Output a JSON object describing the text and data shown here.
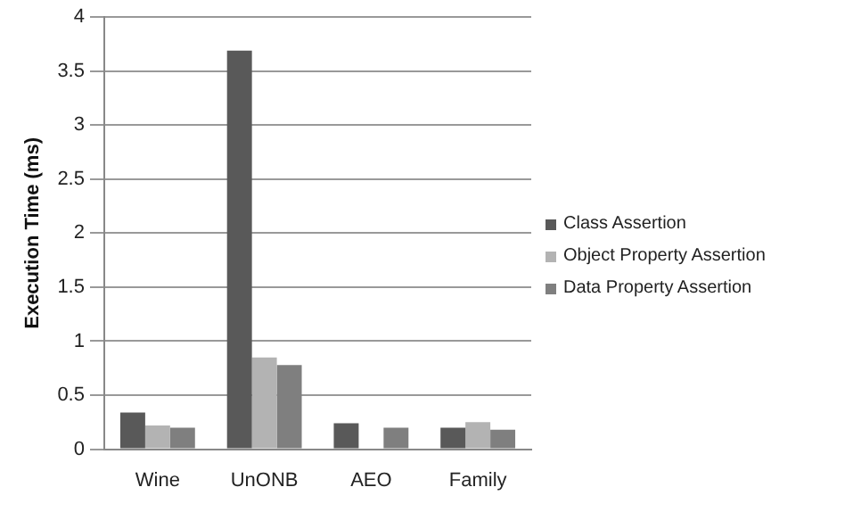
{
  "chart_data": {
    "type": "bar",
    "ylabel": "Execution Time (ms)",
    "categories": [
      "Wine",
      "UnONB",
      "AEO",
      "Family"
    ],
    "series": [
      {
        "name": "Class Assertion",
        "color": "#595959",
        "values": [
          0.34,
          3.69,
          0.24,
          0.2
        ]
      },
      {
        "name": "Object Property Assertion",
        "color": "#b3b3b3",
        "values": [
          0.22,
          0.85,
          null,
          0.25
        ]
      },
      {
        "name": "Data Property Assertion",
        "color": "#7f7f7f",
        "values": [
          0.2,
          0.78,
          0.2,
          0.18
        ]
      }
    ],
    "ylim": [
      0,
      4
    ],
    "yticks": [
      0,
      0.5,
      1,
      1.5,
      2,
      2.5,
      3,
      3.5,
      4
    ],
    "grid": "y",
    "legend": "right"
  }
}
